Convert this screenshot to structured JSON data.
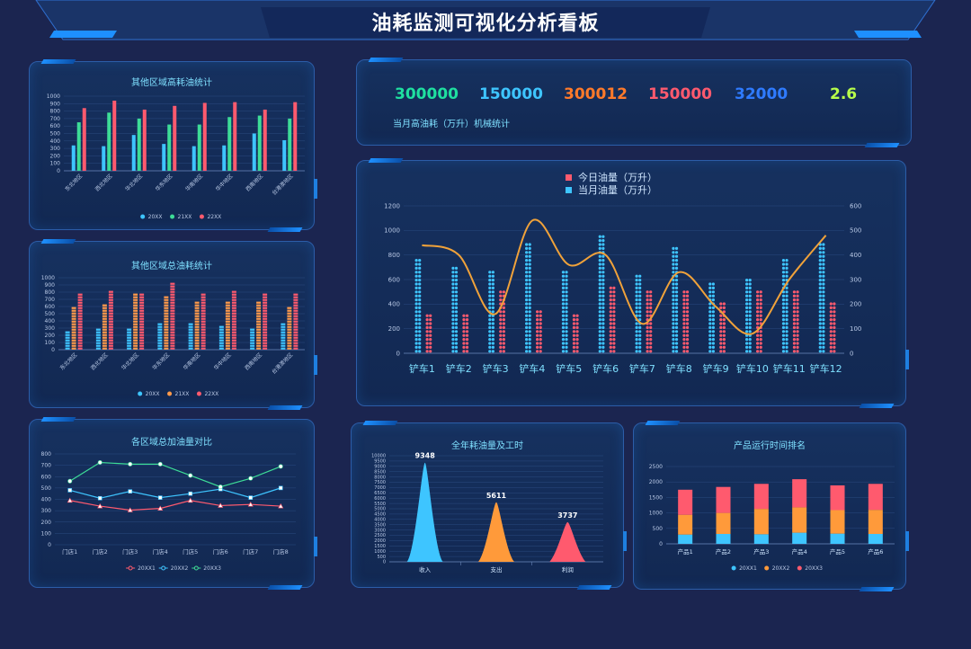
{
  "page_title": "油耗监测可视化分析看板",
  "kpis": {
    "values": [
      {
        "value": "300000",
        "color": "#1fe0a0"
      },
      {
        "value": "150000",
        "color": "#3ec5ff"
      },
      {
        "value": "300012",
        "color": "#ff7a2a"
      },
      {
        "value": "150000",
        "color": "#ff5a6e"
      },
      {
        "value": "32000",
        "color": "#2f7bff"
      },
      {
        "value": "2.6",
        "color": "#b8ff4a"
      }
    ],
    "label": "当月高油耗（万升）机械统计"
  },
  "chart_data": [
    {
      "id": "c1",
      "type": "bar",
      "title": "其他区域高耗油统计",
      "categories": [
        "东北地区",
        "西北地区",
        "华北地区",
        "华东地区",
        "华南地区",
        "华中地区",
        "西南地区",
        "台港澳地区"
      ],
      "series": [
        {
          "name": "20XX",
          "values": [
            340,
            330,
            480,
            360,
            330,
            340,
            500,
            410
          ],
          "color": "#3ec5ff"
        },
        {
          "name": "21XX",
          "values": [
            650,
            780,
            700,
            620,
            620,
            720,
            740,
            700
          ],
          "color": "#3ddc97"
        },
        {
          "name": "22XX",
          "values": [
            840,
            940,
            820,
            870,
            910,
            920,
            820,
            920
          ],
          "color": "#ff5a6e"
        }
      ],
      "ylim": [
        0,
        1000
      ],
      "yticks": [
        0,
        100,
        200,
        300,
        400,
        500,
        600,
        700,
        800,
        900,
        1000
      ],
      "legend": "bottom"
    },
    {
      "id": "c2",
      "type": "bar",
      "title": "其他区域总油耗统计",
      "categories": [
        "东北地区",
        "西北地区",
        "华北地区",
        "华东地区",
        "华南地区",
        "华中地区",
        "西南地区",
        "台港澳地区"
      ],
      "series": [
        {
          "name": "20XX",
          "values": [
            290,
            310,
            330,
            380,
            400,
            370,
            330,
            390
          ],
          "color": "#3ec5ff"
        },
        {
          "name": "21XX",
          "values": [
            610,
            640,
            790,
            770,
            700,
            700,
            710,
            610
          ],
          "color": "#ff9a4a"
        },
        {
          "name": "22XX",
          "values": [
            820,
            840,
            810,
            940,
            810,
            840,
            800,
            810
          ],
          "color": "#ff5a6e"
        }
      ],
      "ylim": [
        0,
        1000
      ],
      "yticks": [
        0,
        100,
        200,
        300,
        400,
        500,
        600,
        700,
        800,
        900,
        1000
      ],
      "legend": "bottom"
    },
    {
      "id": "c3",
      "type": "bar",
      "categories": [
        "铲车1",
        "铲车2",
        "铲车3",
        "铲车4",
        "铲车5",
        "铲车6",
        "铲车7",
        "铲车8",
        "铲车9",
        "铲车10",
        "铲车11",
        "铲车12"
      ],
      "series": [
        {
          "name": "今日油量（万升）",
          "values": [
            330,
            330,
            520,
            380,
            330,
            570,
            530,
            540,
            420,
            540,
            520,
            430
          ],
          "color": "#ff5a6e",
          "axis": "left"
        },
        {
          "name": "当月油量（万升）",
          "values": [
            800,
            730,
            680,
            930,
            700,
            970,
            660,
            880,
            590,
            630,
            800,
            930
          ],
          "color": "#3ec5ff",
          "axis": "left"
        },
        {
          "name": "",
          "type": "line",
          "values": [
            440,
            400,
            160,
            540,
            360,
            400,
            120,
            330,
            190,
            80,
            300,
            480
          ],
          "color": "#f0a23a",
          "axis": "right"
        }
      ],
      "ylim": [
        0,
        1200
      ],
      "yticks": [
        0,
        200,
        400,
        600,
        800,
        1000,
        1200
      ],
      "y2lim": [
        0,
        600
      ],
      "y2ticks": [
        0,
        100,
        200,
        300,
        400,
        500,
        600
      ],
      "legend": "top"
    },
    {
      "id": "c4",
      "type": "line",
      "title": "各区域总加油量对比",
      "categories": [
        "门店1",
        "门店2",
        "门店3",
        "门店4",
        "门店5",
        "门店6",
        "门店7",
        "门店8"
      ],
      "series": [
        {
          "name": "20XX1",
          "values": [
            390,
            340,
            305,
            320,
            390,
            345,
            355,
            340
          ],
          "color": "#ff5a6e"
        },
        {
          "name": "20XX2",
          "values": [
            480,
            410,
            470,
            415,
            450,
            490,
            415,
            500
          ],
          "color": "#3ec5ff"
        },
        {
          "name": "20XX3",
          "values": [
            560,
            725,
            710,
            710,
            610,
            510,
            585,
            690
          ],
          "color": "#3ddc97"
        }
      ],
      "ylim": [
        0,
        800
      ],
      "yticks": [
        0,
        100,
        200,
        300,
        400,
        500,
        600,
        700,
        800
      ],
      "legend": "bottom"
    },
    {
      "id": "c5",
      "type": "bar",
      "title": "全年耗油量及工时",
      "categories": [
        "收入",
        "支出",
        "利润"
      ],
      "values": [
        9348,
        5611,
        3737
      ],
      "data_labels": [
        "9348",
        "5611",
        "3737"
      ],
      "colors": [
        "#3ec5ff",
        "#ff9a3a",
        "#ff5a6e"
      ],
      "ylim": [
        0,
        10000
      ],
      "yticks": [
        0,
        500,
        1000,
        1500,
        2000,
        2500,
        3000,
        3500,
        4000,
        4500,
        5000,
        5500,
        6000,
        6500,
        7000,
        7500,
        8000,
        8500,
        9000,
        9500,
        10000
      ]
    },
    {
      "id": "c6",
      "type": "bar",
      "title": "产品运行时间排名",
      "stacked": true,
      "categories": [
        "产品1",
        "产品2",
        "产品3",
        "产品4",
        "产品5",
        "产品6"
      ],
      "series": [
        {
          "name": "20XX1",
          "values": [
            300,
            320,
            310,
            360,
            330,
            320
          ],
          "color": "#3ec5ff"
        },
        {
          "name": "20XX2",
          "values": [
            640,
            680,
            820,
            820,
            760,
            780
          ],
          "color": "#ff9a3a"
        },
        {
          "name": "20XX3",
          "values": [
            810,
            840,
            810,
            910,
            800,
            840
          ],
          "color": "#ff5a6e"
        }
      ],
      "ylim": [
        0,
        2500
      ],
      "yticks": [
        0,
        500,
        1000,
        1500,
        2000,
        2500
      ],
      "legend": "bottom"
    }
  ]
}
